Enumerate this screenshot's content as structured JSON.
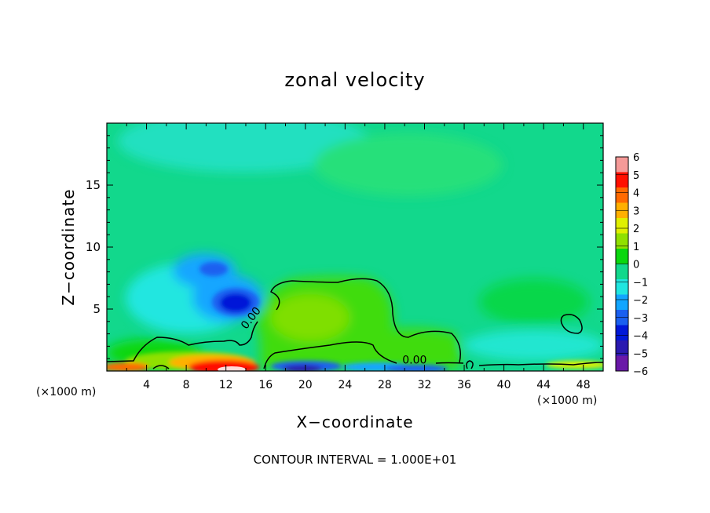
{
  "chart_data": {
    "type": "heatmap",
    "title": "zonal velocity",
    "xlabel": "X−coordinate",
    "ylabel": "Z−coordinate",
    "x_unit_note_left": "(×1000 m)",
    "x_unit_note_right": "(×1000 m)",
    "xlim": [
      0,
      50
    ],
    "ylim": [
      0,
      20
    ],
    "x_ticks": [
      "4",
      "8",
      "12",
      "16",
      "20",
      "24",
      "28",
      "32",
      "36",
      "40",
      "44",
      "48"
    ],
    "y_ticks": [
      "5",
      "10",
      "15"
    ],
    "colorbar": {
      "ticks": [
        "6",
        "5",
        "4",
        "3",
        "2",
        "1",
        "0",
        "−1",
        "−2",
        "−3",
        "−4",
        "−5",
        "−6"
      ],
      "range": [
        -6,
        6
      ]
    },
    "contour_labels": [
      "0.00",
      "0.00"
    ],
    "contour_value": 0.0,
    "background_value": -0.5,
    "features": [
      {
        "desc": "negative core",
        "x": 13.3,
        "z": 5.4,
        "value": -4.6
      },
      {
        "desc": "negative upper lobe",
        "x": 10.8,
        "z": 8.0,
        "value": -3.0
      },
      {
        "desc": "positive near-surface jet",
        "x": 12.5,
        "z": 0.3,
        "value": 5.0
      },
      {
        "desc": "positive plume",
        "x": 24.0,
        "z": 4.0,
        "value": 0.8
      },
      {
        "desc": "negative near-surface flow",
        "x": 25.0,
        "z": 0.3,
        "value": -4.0
      },
      {
        "desc": "weak negative region upper",
        "x": 18.0,
        "z": 19.0,
        "value": -1.5
      },
      {
        "desc": "weak negative region right",
        "x": 44.0,
        "z": 2.0,
        "value": -1.6
      }
    ],
    "grid": false,
    "legend": "right"
  },
  "annotation": "CONTOUR INTERVAL = 1.000E+01",
  "colors": {
    "colorbar": [
      "#6a18a8",
      "#2a1ab0",
      "#0018d8",
      "#1a60f0",
      "#12a6ff",
      "#20e6e0",
      "#12d88c",
      "#0ad70f",
      "#90e000",
      "#e0f000",
      "#ffb000",
      "#ff6a00",
      "#ff1000",
      "#f59a98"
    ]
  }
}
